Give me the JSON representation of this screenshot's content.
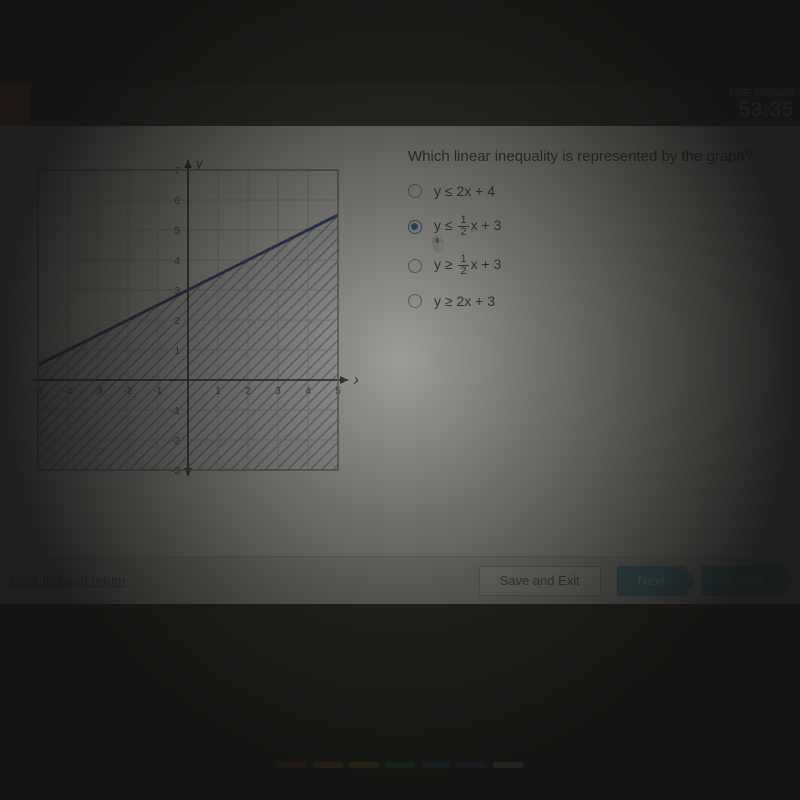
{
  "timer": {
    "label": "TIME REMAIN",
    "value": "53:35"
  },
  "question": {
    "prompt": "Which linear inequality is represented by the graph?",
    "options": [
      {
        "label_pre": "y ≤ 2x + 4",
        "has_frac": false,
        "selected": false
      },
      {
        "label_pre": "y ≤ ",
        "frac_num": "1",
        "frac_den": "2",
        "label_post": "x + 3",
        "has_frac": true,
        "selected": true
      },
      {
        "label_pre": "y ≥ ",
        "frac_num": "1",
        "frac_den": "2",
        "label_post": "x + 3",
        "has_frac": true,
        "selected": false
      },
      {
        "label_pre": "y ≥ 2x + 3",
        "has_frac": false,
        "selected": false
      }
    ]
  },
  "graph": {
    "x_axis_label": "x",
    "y_axis_label": "y",
    "xlim": [
      -5,
      5
    ],
    "ylim": [
      -3,
      7
    ],
    "xticks": [
      -5,
      -4,
      -3,
      -2,
      -1,
      1,
      2,
      3,
      4,
      5
    ],
    "yticks": [
      -3,
      -2,
      -1,
      1,
      2,
      3,
      4,
      5,
      6,
      7
    ],
    "line": {
      "slope": 0.5,
      "intercept": 3,
      "color": "#2a3c8f",
      "width": 3
    },
    "shade_below": true,
    "shade_color": "#7aa0c8",
    "grid_color": "#cccccc",
    "axis_color": "#333333",
    "background": "#ffffff"
  },
  "footer": {
    "mark_link": "Mark this and return",
    "save_exit": "Save and Exit",
    "next": "Next",
    "submit": "Submit"
  },
  "taskbar_colors": [
    "#d94c3d",
    "#f39c12",
    "#f1c40f",
    "#27ae60",
    "#2980b9",
    "#8e44ad",
    "#ffffff"
  ]
}
